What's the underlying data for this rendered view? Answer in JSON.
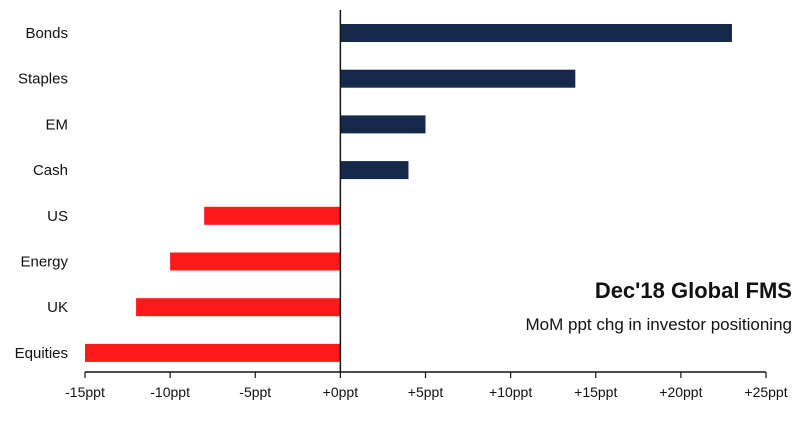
{
  "chart_data": {
    "type": "bar",
    "orientation": "horizontal",
    "title": "Dec'18 Global FMS",
    "subtitle": "MoM ppt chg in investor positioning",
    "categories": [
      "Bonds",
      "Staples",
      "EM",
      "Cash",
      "US",
      "Energy",
      "UK",
      "Equities"
    ],
    "values": [
      23,
      13.8,
      5,
      4,
      -8,
      -10,
      -12,
      -15
    ],
    "xlim": [
      -15,
      25
    ],
    "x_ticks": [
      -15,
      -10,
      -5,
      0,
      5,
      10,
      15,
      20,
      25
    ],
    "x_tick_labels": [
      "-15ppt",
      "-10ppt",
      "-5ppt",
      "+0ppt",
      "+5ppt",
      "+10ppt",
      "+15ppt",
      "+20ppt",
      "+25ppt"
    ],
    "xlabel": "",
    "ylabel": "",
    "grid": false,
    "legend": "none",
    "colors": {
      "positive": "#17284d",
      "negative": "#ff1a1a",
      "axis": "#111111"
    }
  }
}
